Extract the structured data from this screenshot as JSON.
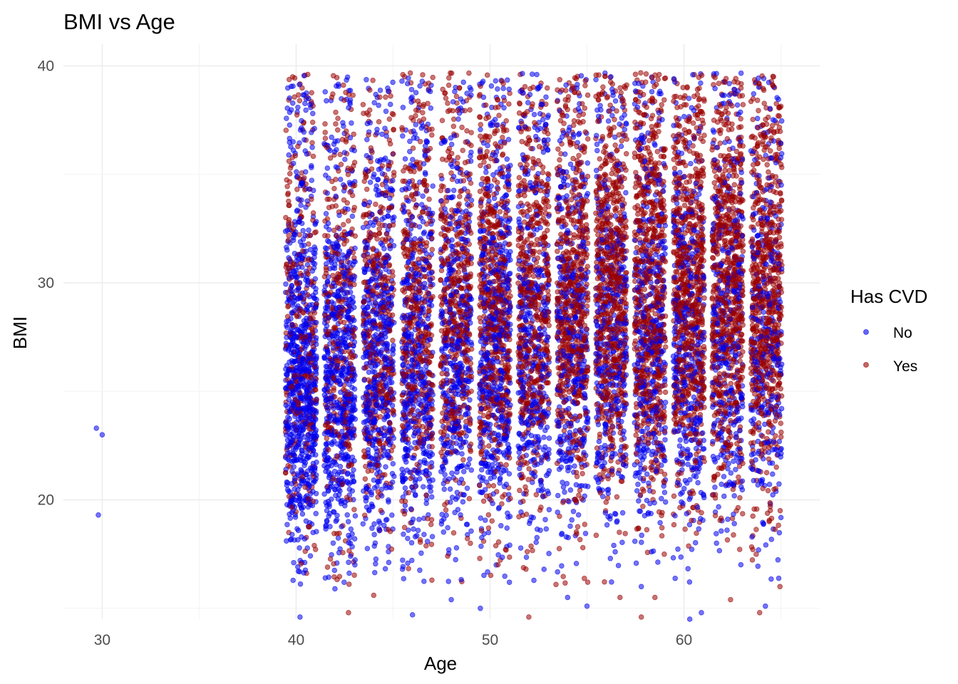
{
  "chart_data": {
    "type": "scatter",
    "title": "BMI vs Age",
    "xlabel": "Age",
    "ylabel": "BMI",
    "xlim": [
      28,
      67
    ],
    "ylim": [
      14.5,
      41
    ],
    "x_ticks": [
      30,
      40,
      50,
      60
    ],
    "y_ticks": [
      20,
      30,
      40
    ],
    "grid": true,
    "jitter": true,
    "legend": {
      "title": "Has CVD",
      "position": "right",
      "entries": [
        "No",
        "Yes"
      ]
    },
    "colors": {
      "No": "#0000ee",
      "Yes": "#9b0000"
    },
    "series": [
      {
        "name": "No",
        "color": "#0000ee",
        "points": [
          {
            "x": 29.7,
            "y": 23.3
          },
          {
            "x": 30.0,
            "y": 23.0
          },
          {
            "x": 29.8,
            "y": 19.3
          },
          {
            "x": 40.2,
            "y": 14.6
          },
          {
            "x": 42.0,
            "y": 15.9
          },
          {
            "x": 46.0,
            "y": 14.7
          },
          {
            "x": 48.0,
            "y": 15.4
          },
          {
            "x": 49.5,
            "y": 15.0
          },
          {
            "x": 54.0,
            "y": 15.5
          },
          {
            "x": 55.0,
            "y": 15.1
          },
          {
            "x": 60.3,
            "y": 14.5
          },
          {
            "x": 60.9,
            "y": 14.8
          },
          {
            "x": 64.2,
            "y": 15.1
          },
          {
            "x": 41.5,
            "y": 16.4
          },
          {
            "x": 51.0,
            "y": 16.2
          },
          {
            "x": 57.8,
            "y": 16.0
          }
        ],
        "columns": [
          {
            "age": 40,
            "count": 800,
            "ymin": 16.0,
            "ymax": 39.7,
            "center": 24.5,
            "spread": 3.6
          },
          {
            "age": 42,
            "count": 650,
            "ymin": 16.0,
            "ymax": 39.5,
            "center": 25.0,
            "spread": 3.9
          },
          {
            "age": 44,
            "count": 560,
            "ymin": 16.0,
            "ymax": 39.5,
            "center": 25.5,
            "spread": 4.0
          },
          {
            "age": 46,
            "count": 520,
            "ymin": 16.0,
            "ymax": 39.5,
            "center": 25.8,
            "spread": 4.1
          },
          {
            "age": 48,
            "count": 450,
            "ymin": 16.0,
            "ymax": 39.5,
            "center": 26.0,
            "spread": 4.2
          },
          {
            "age": 50,
            "count": 560,
            "ymin": 16.0,
            "ymax": 39.7,
            "center": 26.2,
            "spread": 4.3
          },
          {
            "age": 52,
            "count": 430,
            "ymin": 16.0,
            "ymax": 39.7,
            "center": 26.4,
            "spread": 4.3
          },
          {
            "age": 54,
            "count": 420,
            "ymin": 16.0,
            "ymax": 39.7,
            "center": 26.5,
            "spread": 4.4
          },
          {
            "age": 56,
            "count": 400,
            "ymin": 16.0,
            "ymax": 39.7,
            "center": 26.6,
            "spread": 4.4
          },
          {
            "age": 58,
            "count": 420,
            "ymin": 16.0,
            "ymax": 39.7,
            "center": 26.6,
            "spread": 4.4
          },
          {
            "age": 60,
            "count": 400,
            "ymin": 16.0,
            "ymax": 39.7,
            "center": 26.6,
            "spread": 4.4
          },
          {
            "age": 62,
            "count": 360,
            "ymin": 16.0,
            "ymax": 39.7,
            "center": 26.7,
            "spread": 4.4
          },
          {
            "age": 64,
            "count": 330,
            "ymin": 16.0,
            "ymax": 39.7,
            "center": 26.8,
            "spread": 4.4
          }
        ]
      },
      {
        "name": "Yes",
        "color": "#9b0000",
        "points": [
          {
            "x": 42.7,
            "y": 14.8
          },
          {
            "x": 52.0,
            "y": 14.6
          },
          {
            "x": 57.8,
            "y": 14.6
          },
          {
            "x": 63.9,
            "y": 14.8
          },
          {
            "x": 56.7,
            "y": 15.5
          },
          {
            "x": 44.0,
            "y": 15.6
          },
          {
            "x": 58.5,
            "y": 15.5
          },
          {
            "x": 62.4,
            "y": 15.4
          },
          {
            "x": 47.0,
            "y": 16.3
          },
          {
            "x": 53.4,
            "y": 16.1
          }
        ],
        "columns": [
          {
            "age": 40,
            "count": 300,
            "ymin": 16.0,
            "ymax": 39.7,
            "center": 27.0,
            "spread": 4.5
          },
          {
            "age": 42,
            "count": 320,
            "ymin": 16.0,
            "ymax": 39.7,
            "center": 27.3,
            "spread": 4.5
          },
          {
            "age": 44,
            "count": 380,
            "ymin": 16.0,
            "ymax": 39.7,
            "center": 27.5,
            "spread": 4.5
          },
          {
            "age": 46,
            "count": 420,
            "ymin": 16.0,
            "ymax": 39.7,
            "center": 27.8,
            "spread": 4.5
          },
          {
            "age": 48,
            "count": 460,
            "ymin": 16.0,
            "ymax": 39.7,
            "center": 28.0,
            "spread": 4.5
          },
          {
            "age": 50,
            "count": 560,
            "ymin": 16.0,
            "ymax": 39.7,
            "center": 28.2,
            "spread": 4.5
          },
          {
            "age": 52,
            "count": 560,
            "ymin": 16.0,
            "ymax": 39.7,
            "center": 28.4,
            "spread": 4.5
          },
          {
            "age": 54,
            "count": 620,
            "ymin": 16.0,
            "ymax": 39.7,
            "center": 28.6,
            "spread": 4.5
          },
          {
            "age": 56,
            "count": 700,
            "ymin": 16.0,
            "ymax": 39.7,
            "center": 28.7,
            "spread": 4.5
          },
          {
            "age": 58,
            "count": 720,
            "ymin": 16.0,
            "ymax": 39.7,
            "center": 28.8,
            "spread": 4.5
          },
          {
            "age": 60,
            "count": 760,
            "ymin": 16.0,
            "ymax": 39.7,
            "center": 28.8,
            "spread": 4.5
          },
          {
            "age": 62,
            "count": 740,
            "ymin": 16.0,
            "ymax": 39.7,
            "center": 28.9,
            "spread": 4.5
          },
          {
            "age": 64,
            "count": 700,
            "ymin": 16.0,
            "ymax": 39.7,
            "center": 29.0,
            "spread": 4.5
          }
        ]
      }
    ]
  }
}
